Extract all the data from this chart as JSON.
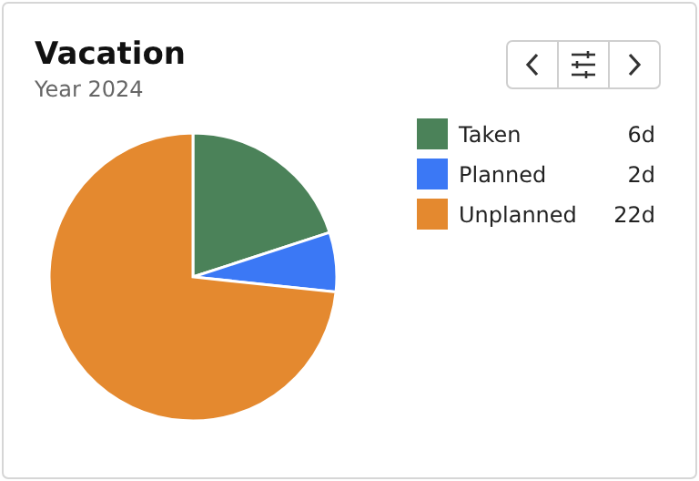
{
  "chart_data": {
    "type": "pie",
    "title": "Vacation",
    "subtitle": "Year 2024",
    "categories": [
      "Taken",
      "Planned",
      "Unplanned"
    ],
    "values": [
      6,
      2,
      22
    ],
    "colors": [
      "#4b8259",
      "#3b78f5",
      "#e4892f"
    ],
    "value_labels": [
      "6d",
      "2d",
      "22d"
    ],
    "legend": "right"
  }
}
